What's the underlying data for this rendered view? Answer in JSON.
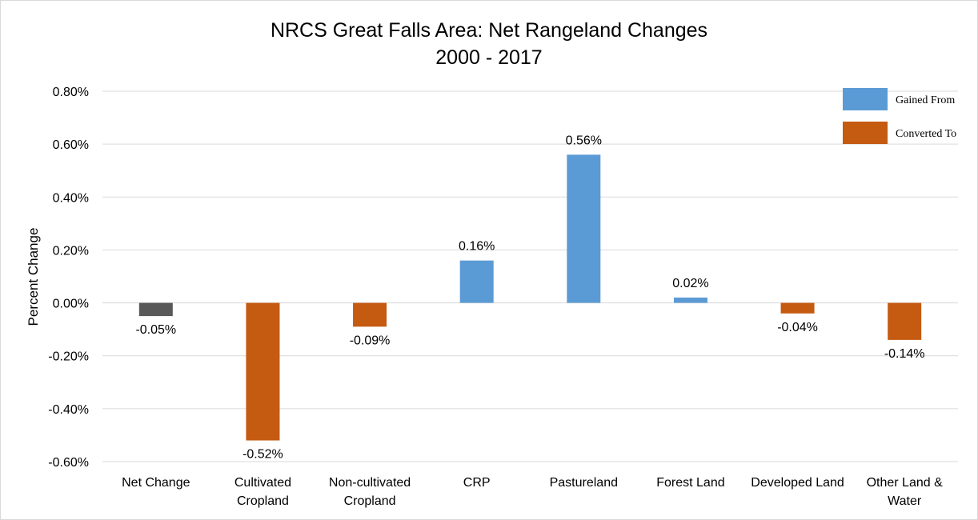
{
  "chart_data": {
    "type": "bar",
    "title": "NRCS Great Falls Area: Net Rangeland Changes",
    "subtitle": "2000 - 2017",
    "ylabel": "Percent Change",
    "xlabel": "",
    "ylim": [
      -0.6,
      0.8
    ],
    "yticks": [
      0.8,
      0.6,
      0.4,
      0.2,
      0.0,
      -0.2,
      -0.4,
      -0.6
    ],
    "ytick_labels": [
      "0.80%",
      "0.60%",
      "0.40%",
      "0.20%",
      "0.00%",
      "-0.20%",
      "-0.40%",
      "-0.60%"
    ],
    "grid": true,
    "categories": [
      [
        "Net Change"
      ],
      [
        "Cultivated",
        "Cropland"
      ],
      [
        "Non-cultivated",
        "Cropland"
      ],
      [
        "CRP"
      ],
      [
        "Pastureland"
      ],
      [
        "Forest Land"
      ],
      [
        "Developed Land"
      ],
      [
        "Other Land &",
        "Water"
      ]
    ],
    "values": [
      -0.05,
      -0.52,
      -0.09,
      0.16,
      0.56,
      0.02,
      -0.04,
      -0.14
    ],
    "data_labels": [
      "-0.05%",
      "-0.52%",
      "-0.09%",
      "0.16%",
      "0.56%",
      "0.02%",
      "-0.04%",
      "-0.14%"
    ],
    "bar_colors": [
      "#595959",
      "#c55a11",
      "#c55a11",
      "#5b9bd5",
      "#5b9bd5",
      "#5b9bd5",
      "#c55a11",
      "#c55a11"
    ],
    "legend_position": "top-right",
    "legend": [
      {
        "label": "Gained From",
        "color": "#5b9bd5"
      },
      {
        "label": "Converted To",
        "color": "#c55a11"
      }
    ]
  }
}
